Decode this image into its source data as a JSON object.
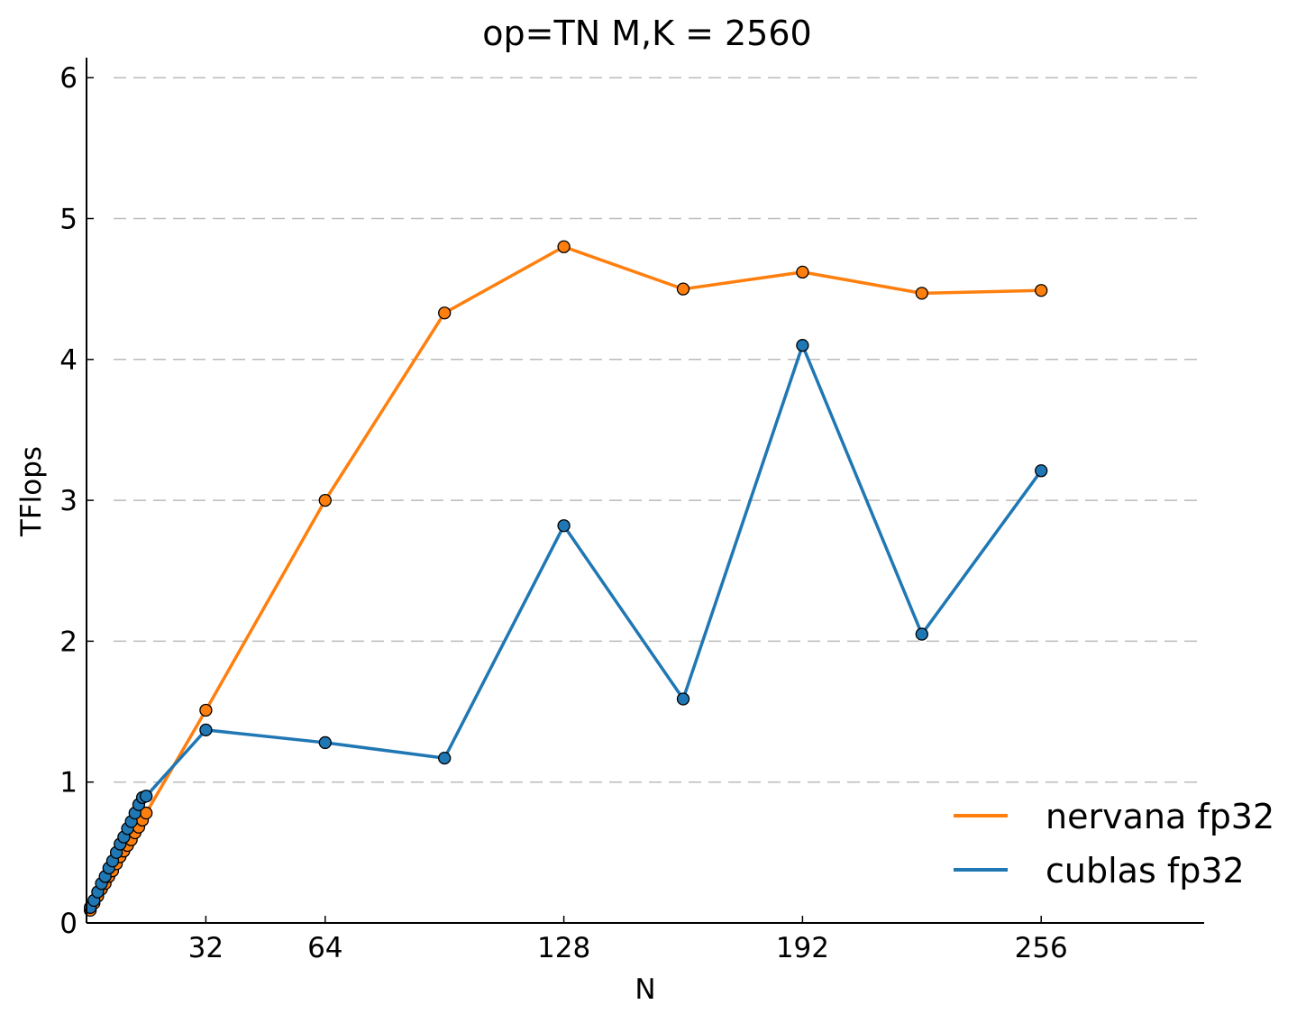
{
  "chart_data": {
    "type": "line",
    "title": "op=TN M,K = 2560",
    "xlabel": "N",
    "ylabel": "TFlops",
    "xlim": [
      0,
      300
    ],
    "ylim": [
      0,
      6.15
    ],
    "xticks": [
      32,
      64,
      128,
      192,
      256
    ],
    "yticks": [
      0,
      1,
      2,
      3,
      4,
      5,
      6
    ],
    "grid": "horizontal dashed",
    "legend_position": "bottom-right",
    "series": [
      {
        "name": "nervana fp32",
        "color": "#ff7f0e",
        "x": [
          1,
          2,
          3,
          4,
          5,
          6,
          7,
          8,
          9,
          10,
          11,
          12,
          13,
          14,
          15,
          16,
          32,
          64,
          96,
          128,
          160,
          192,
          224,
          256
        ],
        "y": [
          0.09,
          0.14,
          0.19,
          0.24,
          0.28,
          0.33,
          0.37,
          0.42,
          0.47,
          0.51,
          0.55,
          0.59,
          0.64,
          0.68,
          0.73,
          0.78,
          1.51,
          3.0,
          4.33,
          4.8,
          4.5,
          4.62,
          4.47,
          4.49
        ]
      },
      {
        "name": "cublas fp32",
        "color": "#1f77b4",
        "x": [
          1,
          2,
          3,
          4,
          5,
          6,
          7,
          8,
          9,
          10,
          11,
          12,
          13,
          14,
          15,
          16,
          32,
          64,
          96,
          128,
          160,
          192,
          224,
          256
        ],
        "y": [
          0.11,
          0.16,
          0.22,
          0.28,
          0.33,
          0.39,
          0.44,
          0.5,
          0.56,
          0.61,
          0.67,
          0.72,
          0.78,
          0.84,
          0.89,
          0.9,
          1.37,
          1.28,
          1.17,
          2.82,
          1.59,
          4.1,
          2.05,
          3.21
        ]
      }
    ]
  }
}
